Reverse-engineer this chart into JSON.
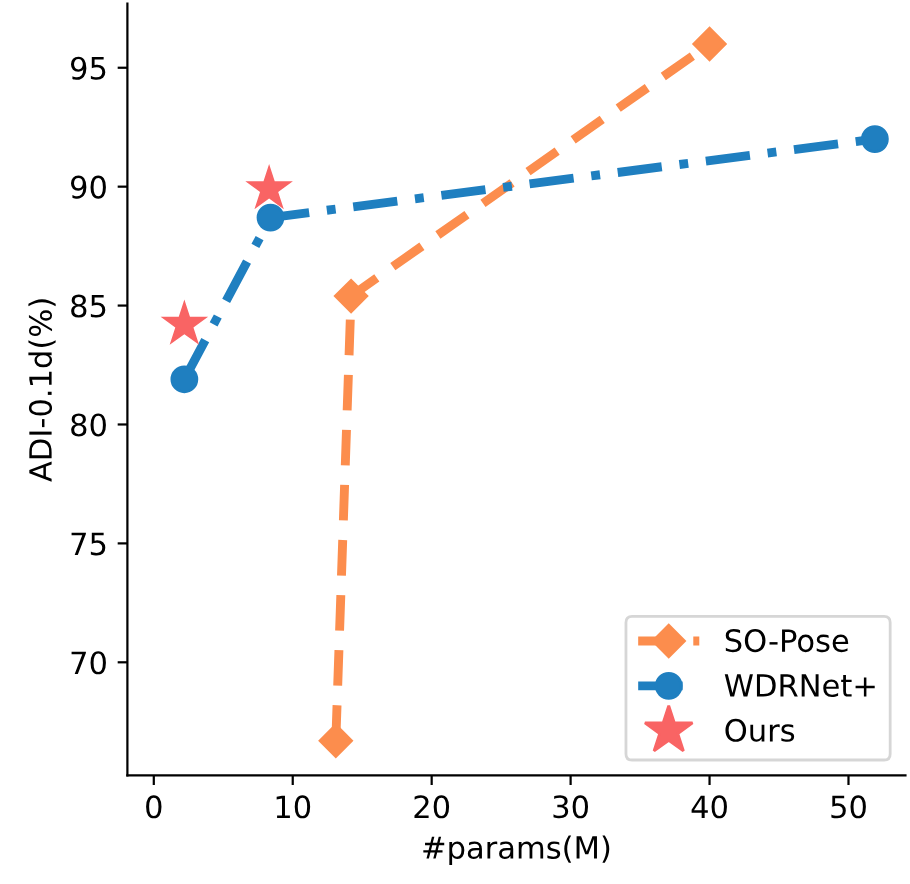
{
  "chart_data": {
    "type": "line",
    "xlabel": "#params(M)",
    "ylabel": "ADI-0.1d(%)",
    "xlim": [
      -1.9,
      54.1
    ],
    "ylim": [
      65.25,
      97.7
    ],
    "xticks": [
      0,
      10,
      20,
      30,
      40,
      50
    ],
    "yticks": [
      70,
      75,
      80,
      85,
      90,
      95
    ],
    "grid": false,
    "legend": "bottom right",
    "series": [
      {
        "name": "SO-Pose",
        "color": "#fc8d4d",
        "x": [
          13.1,
          14.2,
          40.0
        ],
        "values": [
          66.7,
          85.4,
          96.0
        ],
        "marker": "diamond",
        "line_style": "dashed"
      },
      {
        "name": "WDRNet+",
        "color": "#1f7fc0",
        "x": [
          2.2,
          8.4,
          51.9
        ],
        "values": [
          81.9,
          88.7,
          92.0
        ],
        "marker": "circle",
        "line_style": "dashdot"
      },
      {
        "name": "Ours",
        "type": "scatter",
        "color": "#f96464",
        "x": [
          2.2,
          8.3
        ],
        "values": [
          84.2,
          89.9
        ],
        "marker": "star"
      }
    ]
  }
}
